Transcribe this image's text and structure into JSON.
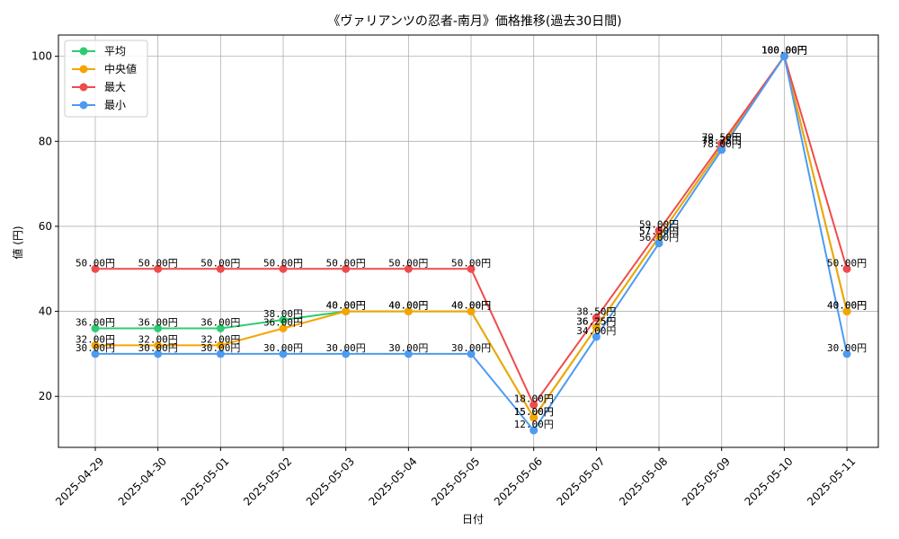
{
  "chart_data": {
    "type": "line",
    "title": "《ヴァリアンツの忍者-南月》価格推移(過去30日間)",
    "xlabel": "日付",
    "ylabel": "値 (円)",
    "ylim": [
      8,
      105
    ],
    "yticks": [
      20,
      40,
      60,
      80,
      100
    ],
    "grid": true,
    "legend_position": "top-left",
    "categories": [
      "2025-04-29",
      "2025-04-30",
      "2025-05-01",
      "2025-05-02",
      "2025-05-03",
      "2025-05-04",
      "2025-05-05",
      "2025-05-06",
      "2025-05-07",
      "2025-05-08",
      "2025-05-09",
      "2025-05-10",
      "2025-05-11"
    ],
    "series": [
      {
        "name": "平均",
        "color": "#2ecc71",
        "values": [
          36,
          36,
          36,
          38,
          40,
          40,
          40,
          15,
          36.25,
          57.5,
          78.75,
          100,
          40
        ],
        "labels": [
          "36.00円",
          "36.00円",
          "36.00円",
          "38.00円",
          "40.00円",
          "40.00円",
          "40.00円",
          "15.00円",
          "36.25円",
          "57.50円",
          "78.75円",
          "100.00円",
          "40.00円"
        ]
      },
      {
        "name": "中央値",
        "color": "#f5a500",
        "values": [
          32,
          32,
          32,
          36,
          40,
          40,
          40,
          15,
          36.25,
          57.5,
          78.75,
          100,
          40
        ],
        "labels": [
          "32.00円",
          "32.00円",
          "32.00円",
          "36.00円",
          "40.00円",
          "40.00円",
          "40.00円",
          "15.00円",
          "36.25円",
          "57.50円",
          "78.75円",
          "100.00円",
          "40.00円"
        ]
      },
      {
        "name": "最大",
        "color": "#ef4b4b",
        "values": [
          50,
          50,
          50,
          50,
          50,
          50,
          50,
          18,
          38.5,
          59,
          79.5,
          100,
          50
        ],
        "labels": [
          "50.00円",
          "50.00円",
          "50.00円",
          "50.00円",
          "50.00円",
          "50.00円",
          "50.00円",
          "18.00円",
          "38.50円",
          "59.00円",
          "79.50円",
          "100.00円",
          "50.00円"
        ]
      },
      {
        "name": "最小",
        "color": "#4d9bf0",
        "values": [
          30,
          30,
          30,
          30,
          30,
          30,
          30,
          12,
          34,
          56,
          78,
          100,
          30
        ],
        "labels": [
          "30.00円",
          "30.00円",
          "30.00円",
          "30.00円",
          "30.00円",
          "30.00円",
          "30.00円",
          "12.00円",
          "34.00円",
          "56.00円",
          "78.00円",
          "100.00円",
          "30.00円"
        ]
      }
    ]
  }
}
